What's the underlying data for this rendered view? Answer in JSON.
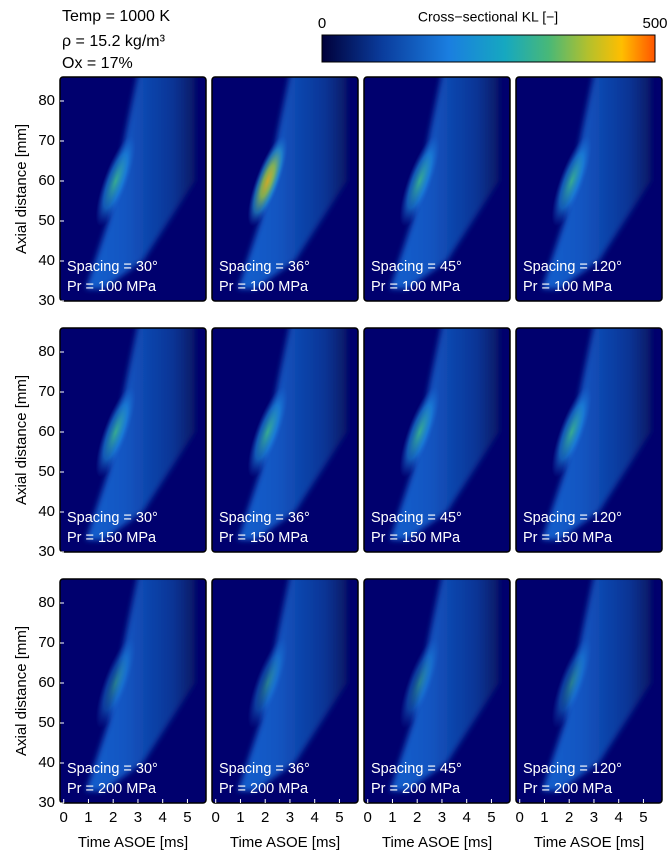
{
  "chart_data": {
    "type": "heatmap",
    "annotations": [
      "Temp = 1000 K",
      "ρ = 15.2 kg/m³",
      "Ox = 17%"
    ],
    "colorbar": {
      "label": "Cross−sectional KL [−]",
      "lim": [
        0,
        500
      ],
      "ticks": [
        0,
        500
      ]
    },
    "xlabel": "Time ASOE [ms]",
    "ylabel": "Axial distance [mm]",
    "xlim": [
      -0.15,
      5.75
    ],
    "ylim": [
      30,
      86
    ],
    "xticks": [
      0,
      1,
      2,
      3,
      4,
      5
    ],
    "yticks": [
      30,
      40,
      50,
      60,
      70,
      80
    ],
    "panels": [
      {
        "spacing": "Spacing = 30°",
        "pressure": "Pr = 100 MPa"
      },
      {
        "spacing": "Spacing = 36°",
        "pressure": "Pr = 100 MPa"
      },
      {
        "spacing": "Spacing = 45°",
        "pressure": "Pr = 100 MPa"
      },
      {
        "spacing": "Spacing = 120°",
        "pressure": "Pr = 100 MPa"
      },
      {
        "spacing": "Spacing = 30°",
        "pressure": "Pr = 150 MPa"
      },
      {
        "spacing": "Spacing = 36°",
        "pressure": "Pr = 150 MPa"
      },
      {
        "spacing": "Spacing = 45°",
        "pressure": "Pr = 150 MPa"
      },
      {
        "spacing": "Spacing = 120°",
        "pressure": "Pr = 150 MPa"
      },
      {
        "spacing": "Spacing = 30°",
        "pressure": "Pr = 200 MPa"
      },
      {
        "spacing": "Spacing = 36°",
        "pressure": "Pr = 200 MPa"
      },
      {
        "spacing": "Spacing = 45°",
        "pressure": "Pr = 200 MPa"
      },
      {
        "spacing": "Spacing = 120°",
        "pressure": "Pr = 200 MPa"
      }
    ]
  }
}
